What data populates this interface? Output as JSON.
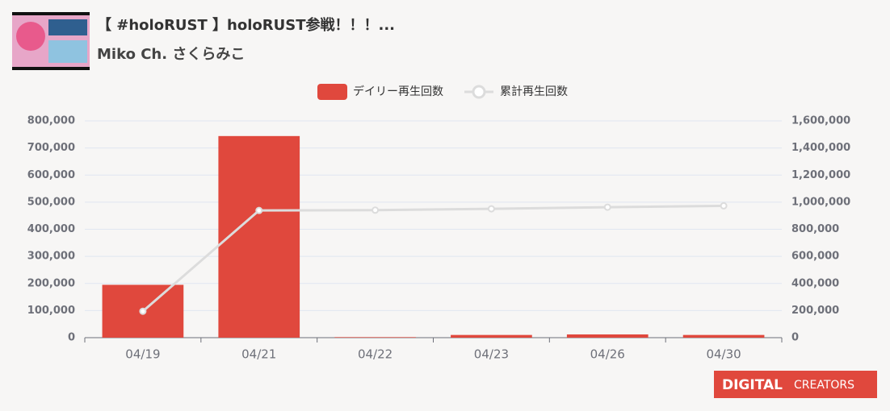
{
  "header": {
    "title": "【 #holoRUST 】holoRUST参戦！！！...",
    "channel": "Miko Ch. さくらみこ"
  },
  "chart_data": {
    "type": "bar",
    "categories": [
      "04/19",
      "04/21",
      "04/22",
      "04/23",
      "04/26",
      "04/30"
    ],
    "series": [
      {
        "name": "デイリー再生回数",
        "type": "bar",
        "color": "#e0483d",
        "values": [
          195000,
          744000,
          2000,
          10000,
          12000,
          10000
        ]
      },
      {
        "name": "累計再生回数",
        "type": "line",
        "axis": "y2",
        "color": "#dcdcdc",
        "values": [
          195000,
          939000,
          941000,
          951000,
          963000,
          973000
        ]
      }
    ],
    "ylim": [
      0,
      800000
    ],
    "yticks": [
      0,
      {
        "value": 100000,
        "label": "100,000"
      },
      {
        "value": 200000,
        "label": "200,000"
      },
      {
        "value": 300000,
        "label": "300,000"
      },
      {
        "value": 400000,
        "label": "400,000"
      },
      {
        "value": 500000,
        "label": "500,000"
      },
      {
        "value": 600000,
        "label": "600,000"
      },
      {
        "value": 700000,
        "label": "700,000"
      },
      {
        "value": 800000,
        "label": "800,000"
      }
    ],
    "y2lim": [
      0,
      1600000
    ],
    "y2ticks": [
      0,
      {
        "value": 200000,
        "label": "200,000"
      },
      {
        "value": 400000,
        "label": "400,000"
      },
      {
        "value": 600000,
        "label": "600,000"
      },
      {
        "value": 800000,
        "label": "800,000"
      },
      {
        "value": 1000000,
        "label": "1,000,000"
      },
      {
        "value": 1200000,
        "label": "1,200,000"
      },
      {
        "value": 1400000,
        "label": "1,400,000"
      },
      {
        "value": 1600000,
        "label": "1,600,000"
      }
    ],
    "grid": true
  },
  "logo": {
    "word1": "DIGITAL",
    "word2": "CREATORS"
  }
}
